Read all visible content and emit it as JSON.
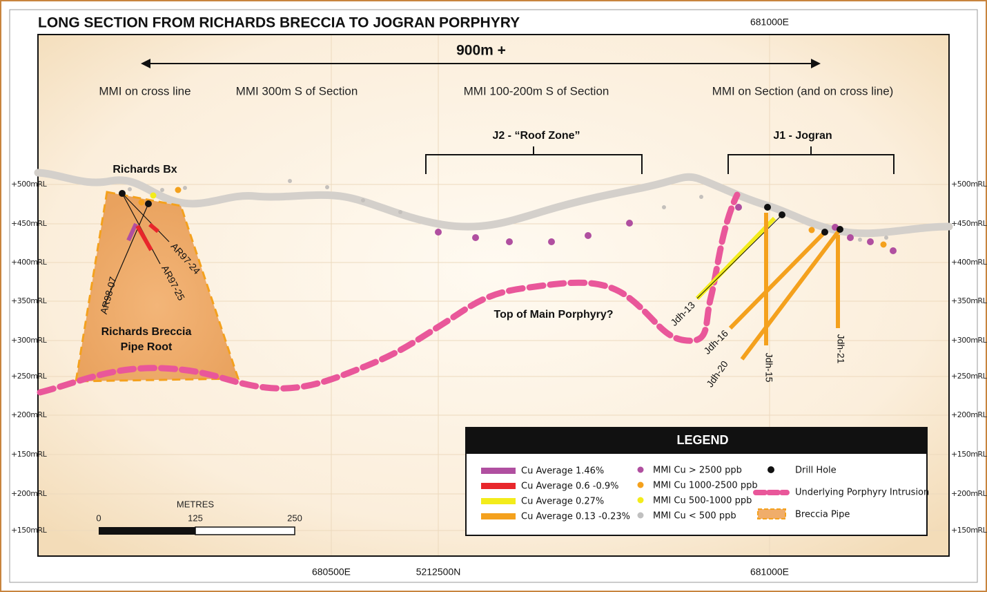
{
  "header": {
    "title": "LONG SECTION FROM RICHARDS BRECCIA TO JOGRAN PORPHYRY",
    "top_coordinate": "681000E"
  },
  "elevation_labels": [
    "+500mRL",
    "+450mRL",
    "+400mRL",
    "+350mRL",
    "+300mRL",
    "+250mRL",
    "+200mRL",
    "+150mRL",
    "+200mRL",
    "+150mRL"
  ],
  "span_label": "900m +",
  "zones": [
    "MMI on cross line",
    "MMI 300m S of Section",
    "MMI 100-200m S of Section",
    "MMI on Section (and on cross line)"
  ],
  "targets": [
    "J2 - “Roof Zone”",
    "J1 - Jogran"
  ],
  "annotations": {
    "richards_bx": "Richards Bx",
    "pipe_root": [
      "Richards Breccia",
      "Pipe Root"
    ],
    "porphyry": "Top of Main Porphyry?"
  },
  "drill_holes": [
    "AR98-07",
    "AR97-25",
    "AR97-24",
    "Jdh-13",
    "Jdh-16",
    "Jdh-20",
    "Jdh-15",
    "Jdh-21"
  ],
  "scale_bar": {
    "title": "METRES",
    "ticks": [
      "0",
      "125",
      "250"
    ]
  },
  "bottom_coordinates": [
    "680500E",
    "5212500N",
    "681000E"
  ],
  "legend": {
    "title": "LEGEND",
    "items": [
      "Cu Average 1.46%",
      "Cu Average 0.6 -0.9%",
      "Cu Average 0.27%",
      "Cu Average 0.13 -0.23%",
      "MMI Cu > 2500 ppb",
      "MMI Cu 1000-2500 ppb",
      "MMI Cu 500-1000 ppb",
      "MMI Cu < 500 ppb",
      "Drill Hole",
      "Underlying Porphyry Intrusion",
      "Breccia Pipe"
    ]
  }
}
